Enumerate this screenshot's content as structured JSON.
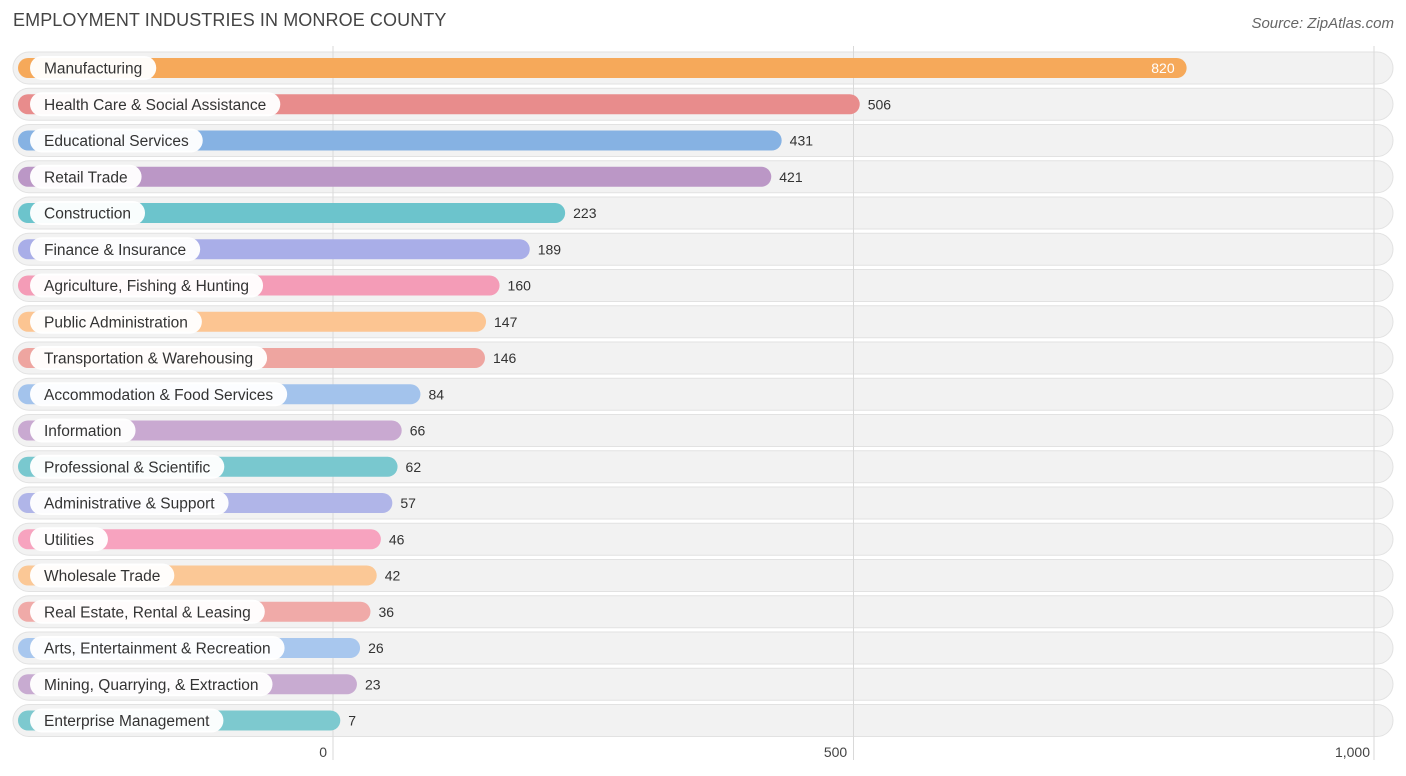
{
  "header": {
    "title": "EMPLOYMENT INDUSTRIES IN MONROE COUNTY",
    "source": "Source: ZipAtlas.com"
  },
  "chart_data": {
    "type": "bar",
    "orientation": "horizontal",
    "categories": [
      "Manufacturing",
      "Health Care & Social Assistance",
      "Educational Services",
      "Retail Trade",
      "Construction",
      "Finance & Insurance",
      "Agriculture, Fishing & Hunting",
      "Public Administration",
      "Transportation & Warehousing",
      "Accommodation & Food Services",
      "Information",
      "Professional & Scientific",
      "Administrative & Support",
      "Utilities",
      "Wholesale Trade",
      "Real Estate, Rental & Leasing",
      "Arts, Entertainment & Recreation",
      "Mining, Quarrying, & Extraction",
      "Enterprise Management"
    ],
    "values": [
      820,
      506,
      431,
      421,
      223,
      189,
      160,
      147,
      146,
      84,
      66,
      62,
      57,
      46,
      42,
      36,
      26,
      23,
      7
    ],
    "value_labels": [
      "820",
      "506",
      "431",
      "421",
      "223",
      "189",
      "160",
      "147",
      "146",
      "84",
      "66",
      "62",
      "57",
      "46",
      "42",
      "36",
      "26",
      "23",
      "7"
    ],
    "colors": [
      "#f6a95a",
      "#e88c8c",
      "#86b2e3",
      "#bb97c6",
      "#6cc4cc",
      "#a9aee8",
      "#f49cb7",
      "#fcc592",
      "#eea5a0",
      "#a3c3ec",
      "#c9a9d1",
      "#79c8cf",
      "#b0b5e8",
      "#f7a3bf",
      "#fbc896",
      "#f0aaa8",
      "#a8c7ee",
      "#c8abd1",
      "#7dc9cf"
    ],
    "xlim": [
      0,
      1000
    ],
    "xticks": [
      0,
      500,
      1000
    ],
    "xtick_labels": [
      "0",
      "500",
      "1,000"
    ],
    "grid": true,
    "title": "EMPLOYMENT INDUSTRIES IN MONROE COUNTY",
    "xlabel": "",
    "ylabel": ""
  }
}
